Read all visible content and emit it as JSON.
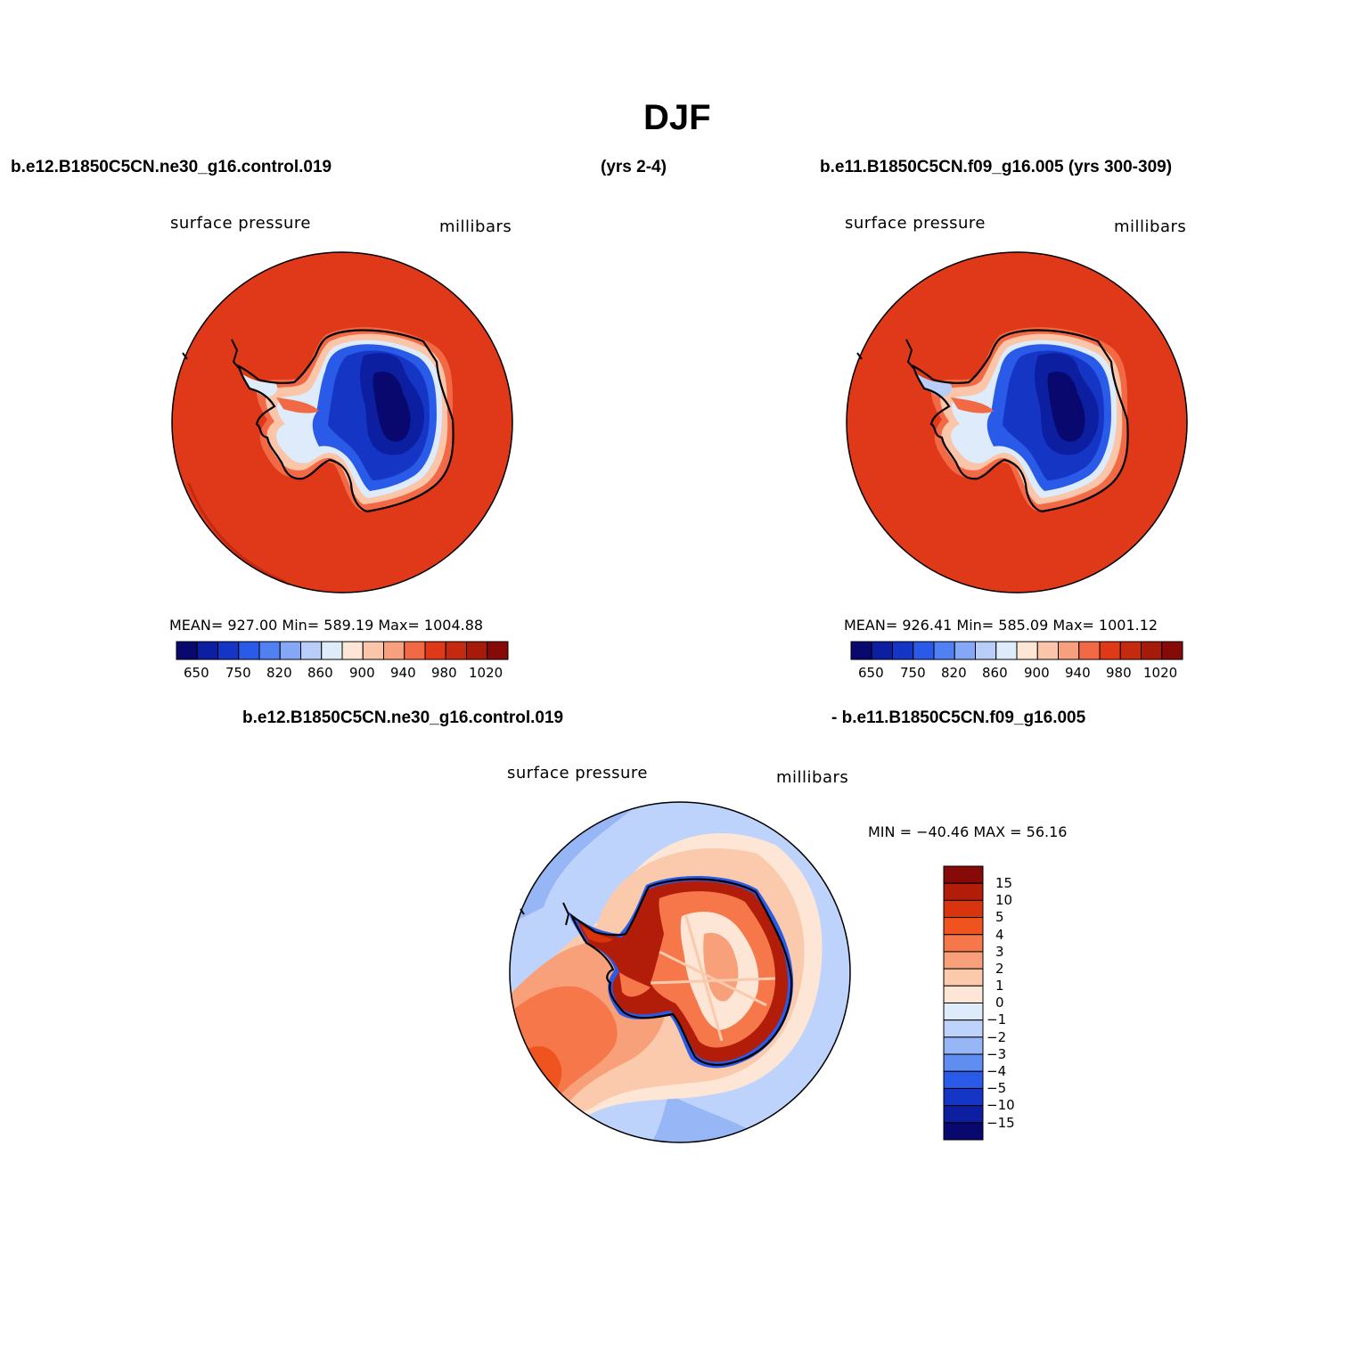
{
  "page_title": "DJF",
  "headers": {
    "left": "b.e12.B1850C5CN.ne30_g16.control.019",
    "center": "(yrs 2-4)",
    "right": "b.e11.B1850C5CN.f09_g16.005 (yrs 300-309)",
    "diff_left": "b.e12.B1850C5CN.ne30_g16.control.019",
    "diff_right": "- b.e11.B1850C5CN.f09_g16.005"
  },
  "panels": [
    {
      "variable": "surface pressure",
      "units": "millibars",
      "stats": "MEAN= 927.00   Min= 589.19   Max= 1004.88",
      "colorbar_ticks": [
        "650",
        "750",
        "820",
        "860",
        "900",
        "940",
        "980",
        "1020"
      ]
    },
    {
      "variable": "surface pressure",
      "units": "millibars",
      "stats": "MEAN= 926.41   Min= 585.09   Max= 1001.12",
      "colorbar_ticks": [
        "650",
        "750",
        "820",
        "860",
        "900",
        "940",
        "980",
        "1020"
      ]
    }
  ],
  "diff_panel": {
    "variable": "surface pressure",
    "units": "millibars",
    "stats": "MIN = −40.46 MAX =   56.16",
    "colorbar_ticks": [
      "15",
      "10",
      "5",
      "4",
      "3",
      "2",
      "1",
      "0",
      "−1",
      "−2",
      "−3",
      "−4",
      "−5",
      "−10",
      "−15"
    ]
  },
  "colors": {
    "abs_scale": [
      "#08086e",
      "#0b1fa0",
      "#1535c4",
      "#2a5ae8",
      "#5080f2",
      "#84a8f6",
      "#b8cdf8",
      "#deebfb",
      "#fde6d6",
      "#fbc5a9",
      "#f7a07e",
      "#f26a45",
      "#e0391a",
      "#c42a10",
      "#a61a0a",
      "#860b08"
    ],
    "diff_scale": [
      "#860b08",
      "#b21d0a",
      "#d8350e",
      "#f0541e",
      "#f5774a",
      "#f8a07a",
      "#fbc9ab",
      "#fde6d6",
      "#deebfb",
      "#bdd3fb",
      "#96b6f6",
      "#5f8ef0",
      "#2a5ae8",
      "#1535c4",
      "#0b1fa0",
      "#08086e"
    ],
    "ocean_abs": "#e0391a",
    "land_outline": "#000000"
  },
  "chart_data": {
    "type": "map",
    "projection": "south-polar-stereographic",
    "season": "DJF",
    "abs_levels": [
      650,
      700,
      750,
      800,
      820,
      840,
      860,
      880,
      900,
      920,
      940,
      960,
      980,
      1000,
      1020
    ],
    "diff_levels": [
      -15,
      -10,
      -5,
      -4,
      -3,
      -2,
      -1,
      0,
      1,
      2,
      3,
      4,
      5,
      10,
      15
    ],
    "panel_stats": [
      {
        "mean": 927.0,
        "min": 589.19,
        "max": 1004.88
      },
      {
        "mean": 926.41,
        "min": 585.09,
        "max": 1001.12
      }
    ],
    "diff_stats": {
      "min": -40.46,
      "max": 56.16
    }
  }
}
